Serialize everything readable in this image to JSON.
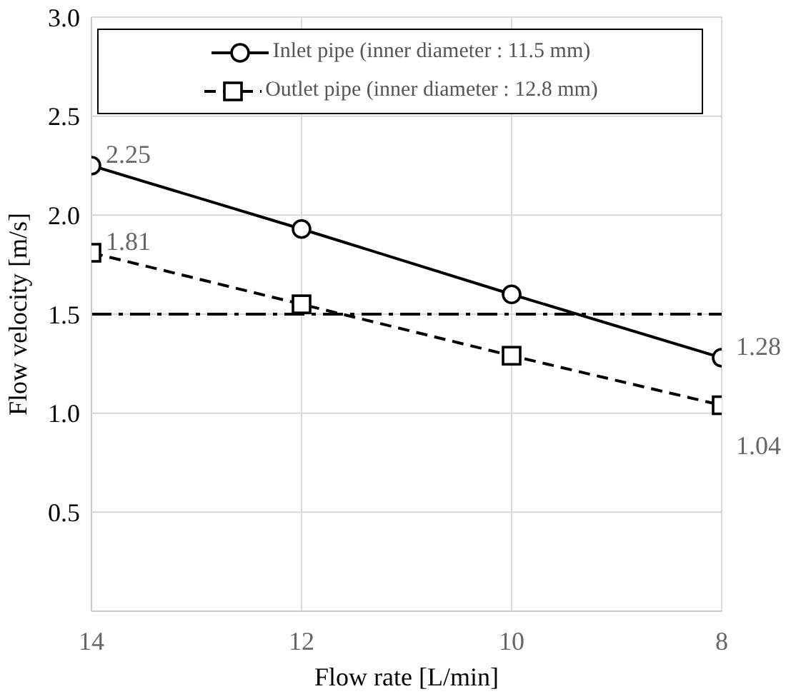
{
  "chart_data": {
    "type": "line",
    "xlabel": "Flow rate [L/min]",
    "ylabel": "Flow velocity [m/s]",
    "x": [
      14,
      12,
      10,
      8
    ],
    "series": [
      {
        "name": "Inlet pipe (inner diameter : 11.5 mm)",
        "color": "#000000",
        "values": [
          2.25,
          1.93,
          1.6,
          1.28
        ],
        "marker": "circle",
        "line_style": "solid",
        "value_labels": [
          "2.25",
          null,
          null,
          "1.28"
        ]
      },
      {
        "name": "Outlet pipe (inner diameter : 12.8 mm)",
        "color": "#000000",
        "values": [
          1.81,
          1.55,
          1.29,
          1.04
        ],
        "marker": "square",
        "line_style": "dashed",
        "value_labels": [
          "1.81",
          null,
          null,
          "1.04"
        ]
      }
    ],
    "xlim": [
      14,
      8
    ],
    "xticks": [
      14,
      12,
      10,
      8
    ],
    "ylim": [
      0,
      3
    ],
    "yticks": [
      0.5,
      {
        "value": 1,
        "label": "1.0"
      },
      1.5,
      {
        "value": 2,
        "label": "2.0"
      },
      2.5,
      {
        "value": 3,
        "label": "3.0"
      }
    ],
    "ref_lines": [
      {
        "axis": "y",
        "value": 1.5,
        "line_style": "dashdot",
        "color": "#000000"
      }
    ],
    "grid": true,
    "legend": "top"
  }
}
